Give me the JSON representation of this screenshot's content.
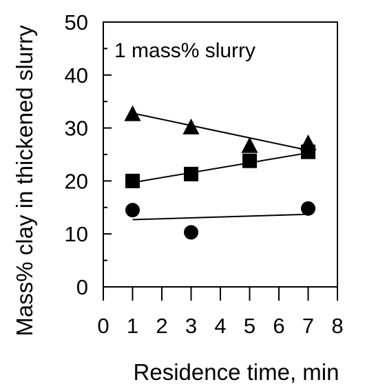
{
  "chart_data": {
    "type": "scatter",
    "title": "",
    "annotation": "1 mass% slurry",
    "xlabel": "Residence time, min",
    "ylabel": "Mass% clay in thickened slurry",
    "xlim": [
      0,
      8
    ],
    "ylim": [
      0,
      50
    ],
    "x_ticks": [
      "0",
      "1",
      "2",
      "3",
      "4",
      "5",
      "6",
      "7",
      "8"
    ],
    "y_ticks": [
      "0",
      "10",
      "20",
      "30",
      "40",
      "50"
    ],
    "grid": false,
    "legend": "none",
    "series": [
      {
        "marker": "triangle",
        "points": [
          [
            1,
            32.5
          ],
          [
            3,
            30.0
          ],
          [
            5,
            26.5
          ],
          [
            7,
            27.0
          ]
        ],
        "trend": [
          [
            1,
            32.8
          ],
          [
            7,
            25.8
          ]
        ]
      },
      {
        "marker": "square",
        "points": [
          [
            1,
            20.0
          ],
          [
            3,
            21.3
          ],
          [
            5,
            23.8
          ],
          [
            7,
            25.5
          ]
        ],
        "trend": [
          [
            1,
            19.7
          ],
          [
            7,
            25.3
          ]
        ]
      },
      {
        "marker": "circle",
        "points": [
          [
            1,
            14.5
          ],
          [
            3,
            10.3
          ],
          [
            7,
            14.8
          ]
        ],
        "trend": [
          [
            1,
            12.7
          ],
          [
            7,
            13.7
          ]
        ]
      }
    ]
  }
}
